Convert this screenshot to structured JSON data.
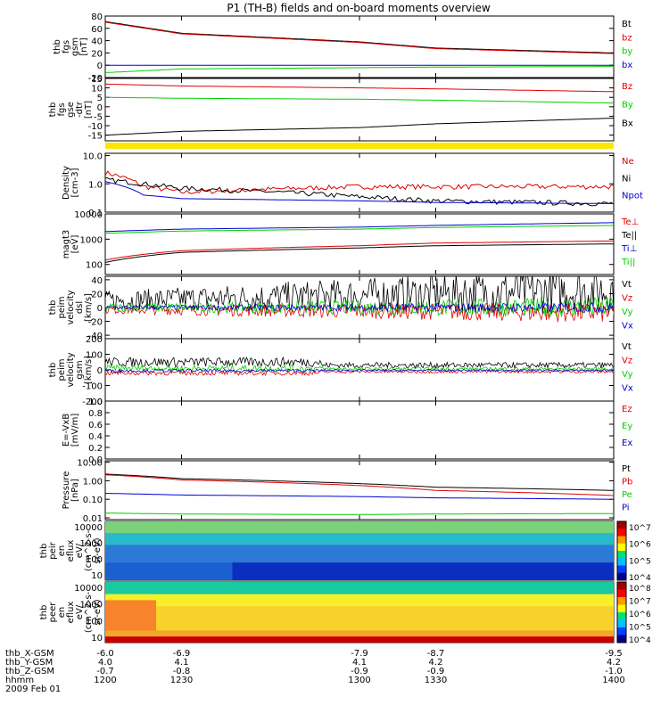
{
  "title": "P1 (TH-B) fields and on-board moments overview",
  "colors": {
    "black": "#000000",
    "red": "#e00000",
    "green": "#00d000",
    "blue": "#0000d0",
    "yellow": "#ffe600"
  },
  "chart_data": [
    {
      "id": "fgs_gsm",
      "type": "line",
      "ylabel": [
        "thb",
        "fgs",
        "gsm",
        "[nT]"
      ],
      "yticks": [
        "80",
        "60",
        "40",
        "20",
        "0",
        "-20"
      ],
      "ylim": [
        -20,
        80
      ],
      "legend": [
        {
          "name": "Bt",
          "color": "black"
        },
        {
          "name": "bz",
          "color": "red"
        },
        {
          "name": "by",
          "color": "green"
        },
        {
          "name": "bx",
          "color": "blue"
        }
      ],
      "series": [
        {
          "name": "Bt",
          "x": [
            1200,
            1230,
            1300,
            1330,
            1400
          ],
          "values": [
            71,
            52,
            38,
            28,
            20
          ]
        },
        {
          "name": "bz",
          "x": [
            1200,
            1230,
            1300,
            1330,
            1400
          ],
          "values": [
            70,
            51,
            37,
            27,
            19
          ]
        },
        {
          "name": "by",
          "x": [
            1200,
            1230,
            1300,
            1330,
            1400
          ],
          "values": [
            -12,
            -6,
            -4,
            -3,
            -2
          ]
        },
        {
          "name": "bx",
          "x": [
            1200,
            1230,
            1300,
            1330,
            1400
          ],
          "values": [
            0,
            0,
            0,
            0,
            0
          ]
        }
      ]
    },
    {
      "id": "fgs_dsl",
      "type": "line",
      "ylabel": [
        "thb",
        "fgs",
        "gse",
        "-dtr",
        "[nT]"
      ],
      "yticks": [
        "15",
        "10",
        "5",
        "0",
        "-5",
        "-10",
        "-15"
      ],
      "ylim": [
        -18,
        15
      ],
      "legend": [
        {
          "name": "Bz",
          "color": "red"
        },
        {
          "name": "By",
          "color": "green"
        },
        {
          "name": "Bx",
          "color": "black"
        }
      ],
      "series": [
        {
          "name": "Bz",
          "x": [
            1200,
            1230,
            1300,
            1330,
            1400
          ],
          "values": [
            12,
            11,
            10,
            9.5,
            8
          ]
        },
        {
          "name": "By",
          "x": [
            1200,
            1230,
            1300,
            1330,
            1400
          ],
          "values": [
            5,
            4.5,
            4,
            3.5,
            2
          ]
        },
        {
          "name": "Bx",
          "x": [
            1200,
            1230,
            1300,
            1330,
            1400
          ],
          "values": [
            -15,
            -13,
            -11,
            -9,
            -6
          ]
        }
      ]
    },
    {
      "id": "density",
      "type": "line",
      "ylabel": [
        "Density",
        "[cm-3]"
      ],
      "yticks": [
        "10.0",
        "1.0",
        "0.1"
      ],
      "ylog": true,
      "ylim": [
        0.1,
        12
      ],
      "legend": [
        {
          "name": "Ne",
          "color": "red"
        },
        {
          "name": "Ni",
          "color": "black"
        },
        {
          "name": "Npot",
          "color": "blue"
        }
      ],
      "series": [
        {
          "name": "Ne",
          "x": [
            1200,
            1215,
            1230,
            1300,
            1330,
            1400
          ],
          "values": [
            2.5,
            0.8,
            0.5,
            0.8,
            0.8,
            0.8
          ]
        },
        {
          "name": "Ni",
          "x": [
            1200,
            1215,
            1230,
            1300,
            1330,
            1400
          ],
          "values": [
            1.4,
            1.0,
            0.7,
            0.35,
            0.25,
            0.2
          ]
        },
        {
          "name": "Npot",
          "x": [
            1200,
            1215,
            1230,
            1300,
            1330,
            1400
          ],
          "values": [
            1.2,
            0.4,
            0.3,
            0.25,
            0.22,
            0.2
          ]
        }
      ]
    },
    {
      "id": "temp",
      "type": "line",
      "ylabel": [
        "magt3",
        "[eV]"
      ],
      "yticks": [
        "10000",
        "1000",
        "100"
      ],
      "ylog": true,
      "ylim": [
        40,
        10000
      ],
      "legend": [
        {
          "name": "Te⊥",
          "color": "red"
        },
        {
          "name": "Te||",
          "color": "black"
        },
        {
          "name": "Ti⊥",
          "color": "blue"
        },
        {
          "name": "Ti||",
          "color": "green"
        }
      ],
      "series": [
        {
          "name": "Te⊥",
          "x": [
            1200,
            1230,
            1300,
            1330,
            1400
          ],
          "values": [
            150,
            350,
            550,
            700,
            850
          ]
        },
        {
          "name": "Te||",
          "x": [
            1200,
            1230,
            1300,
            1330,
            1400
          ],
          "values": [
            120,
            300,
            450,
            550,
            650
          ]
        },
        {
          "name": "Ti⊥",
          "x": [
            1200,
            1230,
            1300,
            1330,
            1400
          ],
          "values": [
            2000,
            2500,
            3000,
            3500,
            4500
          ]
        },
        {
          "name": "Ti||",
          "x": [
            1200,
            1230,
            1300,
            1330,
            1400
          ],
          "values": [
            1700,
            2100,
            2500,
            2900,
            3500
          ]
        }
      ]
    },
    {
      "id": "vel_dsl",
      "type": "line",
      "ylabel": [
        "thb",
        "peim",
        "velocity",
        "dsl",
        "[km/s]"
      ],
      "yticks": [
        "40",
        "20",
        "0",
        "-20",
        "-40"
      ],
      "ylim": [
        -45,
        45
      ],
      "legend": [
        {
          "name": "Vt",
          "color": "black"
        },
        {
          "name": "Vz",
          "color": "red"
        },
        {
          "name": "Vy",
          "color": "green"
        },
        {
          "name": "Vx",
          "color": "blue"
        }
      ]
    },
    {
      "id": "vel_gsm",
      "type": "line",
      "ylabel": [
        "thb",
        "peim",
        "velocity",
        "gsm",
        "[km/s]"
      ],
      "yticks": [
        "200",
        "100",
        "0",
        "-100",
        "-200"
      ],
      "ylim": [
        -200,
        200
      ],
      "legend": [
        {
          "name": "Vt",
          "color": "black"
        },
        {
          "name": "Vz",
          "color": "red"
        },
        {
          "name": "Vy",
          "color": "green"
        },
        {
          "name": "Vx",
          "color": "blue"
        }
      ]
    },
    {
      "id": "efield",
      "type": "line",
      "ylabel": [
        "E=-VxB",
        "[mV/m]"
      ],
      "yticks": [
        "1.0",
        "0.8",
        "0.6",
        "0.4",
        "0.2",
        "0.0"
      ],
      "ylim": [
        0,
        1
      ],
      "legend": [
        {
          "name": "Ez",
          "color": "red"
        },
        {
          "name": "Ey",
          "color": "green"
        },
        {
          "name": "Ex",
          "color": "blue"
        }
      ],
      "series": []
    },
    {
      "id": "pressure",
      "type": "line",
      "ylabel": [
        "Pressure",
        "[nPa]"
      ],
      "yticks": [
        "10.00",
        "1.00",
        "0.10",
        "0.01"
      ],
      "ylog": true,
      "ylim": [
        0.008,
        12
      ],
      "legend": [
        {
          "name": "Pt",
          "color": "black"
        },
        {
          "name": "Pb",
          "color": "red"
        },
        {
          "name": "Pe",
          "color": "green"
        },
        {
          "name": "Pi",
          "color": "blue"
        }
      ],
      "series": [
        {
          "name": "Pt",
          "x": [
            1200,
            1230,
            1300,
            1330,
            1400
          ],
          "values": [
            2.3,
            1.3,
            0.7,
            0.45,
            0.3
          ]
        },
        {
          "name": "Pb",
          "x": [
            1200,
            1230,
            1300,
            1330,
            1400
          ],
          "values": [
            2.1,
            1.1,
            0.55,
            0.3,
            0.16
          ]
        },
        {
          "name": "Pe",
          "x": [
            1200,
            1230,
            1300,
            1330,
            1400
          ],
          "values": [
            0.018,
            0.016,
            0.015,
            0.016,
            0.017
          ]
        },
        {
          "name": "Pi",
          "x": [
            1200,
            1230,
            1300,
            1330,
            1400
          ],
          "values": [
            0.21,
            0.17,
            0.14,
            0.12,
            0.1
          ]
        }
      ]
    },
    {
      "id": "peir",
      "type": "heatmap",
      "ylabel": [
        "thb",
        "peir",
        "en",
        "eflux",
        "eV/",
        "(cm^2-s-",
        "sr-eV)"
      ],
      "yticks": [
        "10000",
        "1000",
        "100",
        "10"
      ],
      "colorbar": [
        "10^7",
        "10^6",
        "10^5",
        "10^4"
      ]
    },
    {
      "id": "peer",
      "type": "heatmap",
      "ylabel": [
        "thb",
        "peer",
        "en",
        "eflux",
        "eV/",
        "(cm^2-s-",
        "sr-eV)"
      ],
      "yticks": [
        "10000",
        "1000",
        "100",
        "10"
      ],
      "colorbar": [
        "10^8",
        "10^7",
        "10^6",
        "10^5",
        "10^4"
      ]
    }
  ],
  "x_axis": {
    "range": [
      1200,
      1400
    ],
    "rows": [
      {
        "label": "thb_X-GSM",
        "values": [
          "-6.0",
          "-6.9",
          "-7.9",
          "-8.7",
          "-9.5"
        ]
      },
      {
        "label": "thb_Y-GSM",
        "values": [
          "4.0",
          "4.1",
          "4.1",
          "4.2",
          "4.2"
        ]
      },
      {
        "label": "thb_Z-GSM",
        "values": [
          "-0.7",
          "-0.8",
          "-0.9",
          "-0.9",
          "-1.0"
        ]
      },
      {
        "label": "hhmm",
        "values": [
          "1200",
          "1230",
          "1300",
          "1330",
          "1400"
        ]
      }
    ],
    "date": "2009 Feb 01"
  }
}
